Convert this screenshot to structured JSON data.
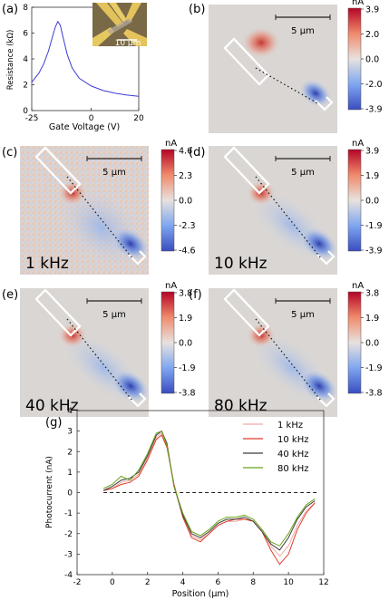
{
  "panel_a": {
    "label": "(a)",
    "scale_label": "10 µm",
    "chart_data": {
      "type": "line",
      "xlabel": "Gate Voltage (V)",
      "ylabel": "Resistance (kΩ)",
      "xlim": [
        -25,
        20
      ],
      "ylim": [
        0,
        8
      ],
      "xticks": [
        -25,
        0,
        20
      ],
      "yticks": [
        0,
        2,
        4,
        6,
        8
      ],
      "x": [
        -25,
        -22,
        -20,
        -18,
        -16,
        -15,
        -14,
        -13,
        -12,
        -10,
        -8,
        -5,
        0,
        5,
        10,
        15,
        20
      ],
      "y": [
        2.2,
        2.9,
        3.6,
        4.6,
        5.9,
        6.5,
        6.9,
        6.6,
        5.8,
        4.3,
        3.3,
        2.5,
        1.9,
        1.55,
        1.35,
        1.2,
        1.1
      ],
      "color": "#3b3bd6"
    }
  },
  "maps": [
    {
      "id": "b",
      "label": "(b)",
      "unit": "nA",
      "scale": "5 µm",
      "freq": "",
      "ticks": [
        "3.9",
        "2.0",
        "0.0",
        "-2.0",
        "-3.9"
      ]
    },
    {
      "id": "c",
      "label": "(c)",
      "unit": "nA",
      "scale": "5 µm",
      "freq": "1 kHz",
      "ticks": [
        "4.6",
        "2.3",
        "0.0",
        "-2.3",
        "-4.6"
      ]
    },
    {
      "id": "d",
      "label": "(d)",
      "unit": "nA",
      "scale": "5 µm",
      "freq": "10 kHz",
      "ticks": [
        "3.9",
        "1.9",
        "0.0",
        "-1.9",
        "-3.9"
      ]
    },
    {
      "id": "e",
      "label": "(e)",
      "unit": "nA",
      "scale": "5 µm",
      "freq": "40 kHz",
      "ticks": [
        "3.8",
        "1.9",
        "0.0",
        "-1.9",
        "-3.8"
      ]
    },
    {
      "id": "f",
      "label": "(f)",
      "unit": "nA",
      "scale": "5 µm",
      "freq": "80 kHz",
      "ticks": [
        "3.8",
        "1.9",
        "0.0",
        "-1.9",
        "-3.8"
      ]
    }
  ],
  "panel_g": {
    "label": "(g)",
    "chart_data": {
      "type": "line",
      "xlabel": "Position (µm)",
      "ylabel": "Photocurrent (nA)",
      "xlim": [
        -2,
        12
      ],
      "ylim": [
        -4,
        4
      ],
      "xticks": [
        -2,
        0,
        2,
        4,
        6,
        8,
        10,
        12
      ],
      "yticks": [
        -4,
        -3,
        -2,
        -1,
        0,
        1,
        2,
        3,
        4
      ],
      "legend_position": "top-right",
      "x": [
        -0.5,
        0,
        0.5,
        1,
        1.5,
        2,
        2.5,
        2.8,
        3.1,
        3.5,
        4,
        4.5,
        5,
        5.5,
        6,
        6.5,
        7,
        7.5,
        8,
        8.5,
        9,
        9.5,
        10,
        10.5,
        11,
        11.5
      ],
      "series": [
        {
          "name": "1 kHz",
          "color": "#f2a8a8",
          "values": [
            0.1,
            0.2,
            0.5,
            0.6,
            0.9,
            1.7,
            2.7,
            2.9,
            2.3,
            0.4,
            -1.1,
            -2.1,
            -2.3,
            -2.0,
            -1.6,
            -1.4,
            -1.4,
            -1.3,
            -1.4,
            -1.9,
            -2.6,
            -3.1,
            -2.6,
            -1.6,
            -0.9,
            -0.5
          ]
        },
        {
          "name": "10 kHz",
          "color": "#e03a2a",
          "values": [
            0.1,
            0.2,
            0.4,
            0.5,
            0.8,
            1.6,
            2.6,
            2.8,
            2.2,
            0.4,
            -1.2,
            -2.2,
            -2.4,
            -2.0,
            -1.6,
            -1.4,
            -1.3,
            -1.3,
            -1.4,
            -1.9,
            -2.8,
            -3.5,
            -3.0,
            -1.8,
            -1.0,
            -0.5
          ]
        },
        {
          "name": "40 kHz",
          "color": "#3a3a3a",
          "values": [
            0.1,
            0.3,
            0.6,
            0.7,
            1.0,
            1.8,
            2.8,
            3.0,
            2.4,
            0.3,
            -1.1,
            -2.0,
            -2.2,
            -1.9,
            -1.5,
            -1.3,
            -1.3,
            -1.2,
            -1.4,
            -1.9,
            -2.5,
            -2.8,
            -2.2,
            -1.3,
            -0.7,
            -0.4
          ]
        },
        {
          "name": "80 kHz",
          "color": "#6aa51c",
          "values": [
            0.2,
            0.4,
            0.8,
            0.6,
            1.1,
            1.9,
            2.9,
            3.0,
            2.3,
            0.3,
            -1.0,
            -1.9,
            -2.1,
            -1.8,
            -1.4,
            -1.2,
            -1.2,
            -1.1,
            -1.3,
            -1.8,
            -2.4,
            -2.6,
            -2.0,
            -1.2,
            -0.6,
            -0.3
          ]
        }
      ],
      "reference_line": {
        "y": 0,
        "style": "dashed"
      }
    }
  }
}
